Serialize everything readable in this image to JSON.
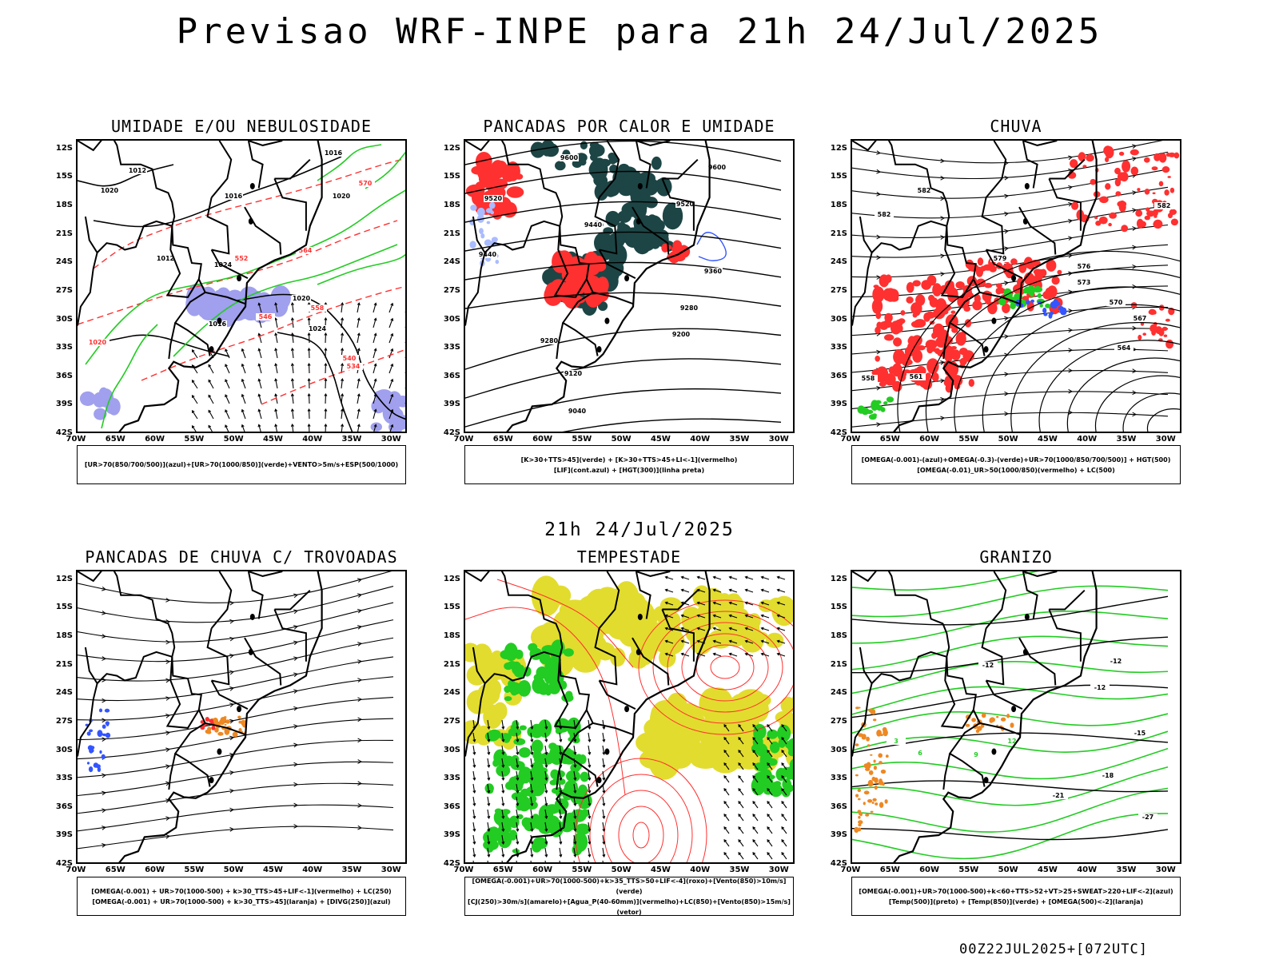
{
  "title": "Previsao WRF-INPE  para 21h 24/Jul/2025",
  "mid_title": "21h 24/Jul/2025",
  "footer": "00Z22JUL2025+[072UTC]",
  "lat_labels": [
    "12S",
    "15S",
    "18S",
    "21S",
    "24S",
    "27S",
    "30S",
    "33S",
    "36S",
    "39S",
    "42S"
  ],
  "lon_labels": [
    "70W",
    "65W",
    "60W",
    "55W",
    "50W",
    "45W",
    "40W",
    "35W",
    "30W"
  ],
  "panels": [
    {
      "title": "UMIDADE E/OU NEBULOSIDADE",
      "legend": [
        "[UR>70(850/700/500)](azul)+[UR>70(1000/850)](verde)+VENTO>5m/s+ESP(500/1000)"
      ],
      "contour_labels": [
        "1012",
        "1016",
        "1016",
        "1020",
        "1012",
        "1020",
        "1016",
        "1024",
        "1020",
        "1024",
        "1020",
        "564",
        "570",
        "552",
        "558",
        "546",
        "540",
        "534"
      ]
    },
    {
      "title": "PANCADAS POR CALOR E UMIDADE",
      "legend": [
        "[K>30+TTS>45](verde) + [K>30+TTS>45+LI<-1](vermelho)",
        "[LIF](cont.azul) + [HGT(300)](linha preta)"
      ],
      "contour_labels": [
        "9600",
        "9600",
        "9520",
        "9520",
        "9440",
        "9440",
        "9360",
        "9280",
        "9280",
        "9200",
        "9120",
        "9040"
      ]
    },
    {
      "title": "CHUVA",
      "legend": [
        "[OMEGA(-0.001)-(azul)+OMEGA(-0.3)-(verde)+UR>70(1000/850/700/500)] + HGT(500)",
        "[OMEGA(-0.01)_UR>50(1000/850)(vermelho) + LC(500)"
      ],
      "contour_labels": [
        "582",
        "582",
        "582",
        "579",
        "576",
        "573",
        "570",
        "567",
        "564",
        "561",
        "558"
      ]
    },
    {
      "title": "PANCADAS DE CHUVA C/ TROVOADAS",
      "legend": [
        "[OMEGA(-0.001) + UR>70(1000-500) + k>30_TTS>45+LIF<-1](vermelho) + LC(250)",
        "[OMEGA(-0.001) + UR>70(1000-500) + k>30_TTS>45](laranja) + [DIVG(250)](azul)"
      ],
      "contour_labels": []
    },
    {
      "title": "TEMPESTADE",
      "legend": [
        "[OMEGA(-0.001)+UR>70(1000-500)+k>35_TTS>50+LIF<-4](roxo)+[Vento(850)>10m/s](verde)",
        "[CJ(250)>30m/s](amarelo)+[Agua_P(40-60mm)](vermelho)+LC(850)+[Vento(850)>15m/s](vetor)"
      ],
      "contour_labels": []
    },
    {
      "title": "GRANIZO",
      "legend": [
        "[OMEGA(-0.001)+UR>70(1000-500)+k<60+TTS>52+VT>25+SWEAT>220+LIF<-2](azul)",
        "[Temp(500)](preto) + [Temp(850)](verde) + [OMEGA(500)<-2](laranja)"
      ],
      "contour_labels": [
        "-12",
        "-12",
        "-12",
        "-15",
        "-18",
        "-21",
        "-27",
        "3",
        "6",
        "9",
        "12"
      ]
    }
  ],
  "colors": {
    "red": "#ff3030",
    "green": "#22cc22",
    "blue": "#3355ff",
    "lavender": "#a0a0ee",
    "teal": "#1d4545",
    "yellow": "#e2dc2e",
    "orange": "#ee8822",
    "black": "#000000"
  }
}
